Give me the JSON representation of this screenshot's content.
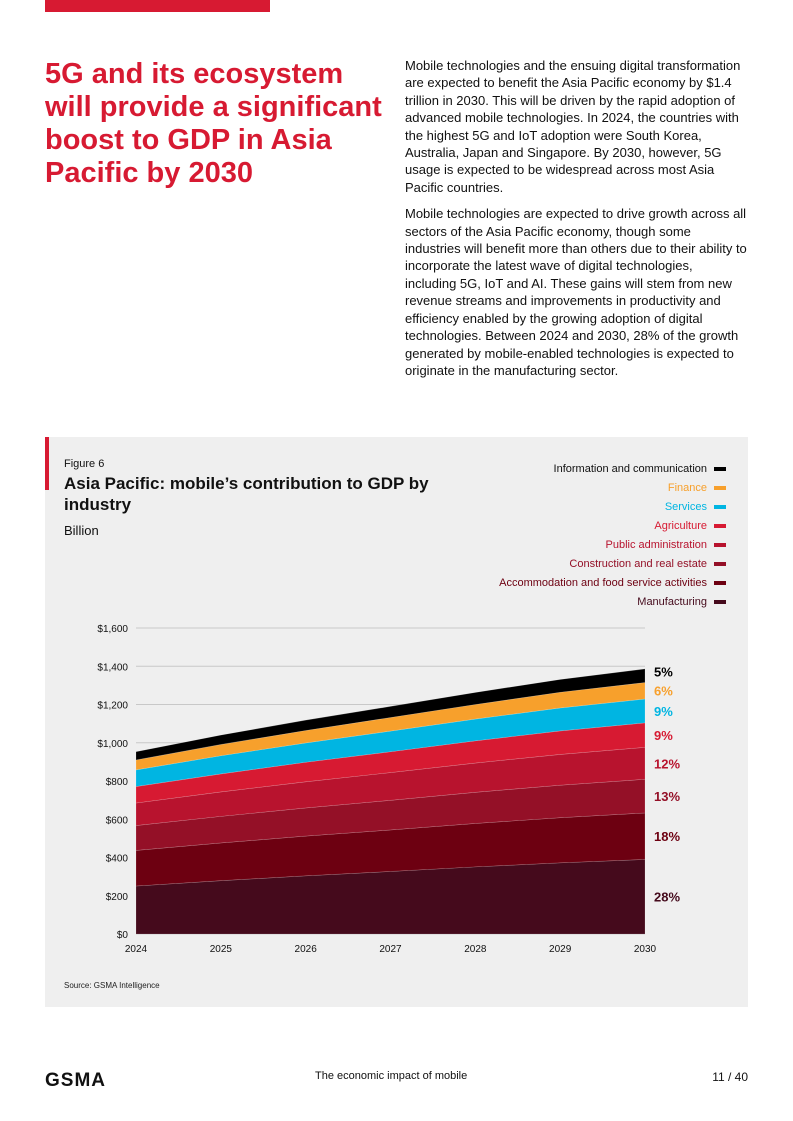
{
  "header": {
    "title": "5G and its ecosystem will provide a significant boost to GDP in Asia Pacific by 2030"
  },
  "body": {
    "paragraphs": [
      "Mobile technologies and the ensuing digital transformation are expected to benefit the Asia Pacific economy by $1.4 trillion in 2030. This will be driven by the rapid adoption of advanced mobile technologies. In 2024, the countries with the highest 5G and IoT adoption were South Korea, Australia, Japan and Singapore. By 2030, however, 5G usage is expected to be widespread across most Asia Pacific countries.",
      "Mobile technologies are expected to drive growth across all sectors of the Asia Pacific economy, though some industries will benefit more than others due to their ability to incorporate the latest wave of digital technologies, including 5G, IoT and AI. These gains will stem from new revenue streams and improvements in productivity and efficiency enabled by the growing adoption of digital technologies. Between 2024 and 2030, 28% of the growth generated by mobile-enabled technologies is expected to originate in the manufacturing sector."
    ]
  },
  "figure": {
    "number": "Figure 6",
    "title": "Asia Pacific: mobile’s contribution to GDP by industry",
    "unit": "Billion",
    "source": "Source: GSMA Intelligence"
  },
  "chart_data": {
    "type": "area",
    "stacked": true,
    "x": [
      "2024",
      "2025",
      "2026",
      "2027",
      "2028",
      "2029",
      "2030"
    ],
    "yticks": [
      "$0",
      "$200",
      "$400",
      "$600",
      "$800",
      "$1,000",
      "$1,200",
      "$1,400",
      "$1,600"
    ],
    "ylim": [
      0,
      1600
    ],
    "legend_position": "top-right",
    "series": [
      {
        "name": "Manufacturing",
        "color": "#450a1c",
        "share": "28%",
        "values": [
          251,
          279,
          304,
          327,
          351,
          372,
          390
        ]
      },
      {
        "name": "Accommodation and food service activities",
        "color": "#6d0011",
        "share": "18%",
        "values": [
          186,
          197,
          208,
          217,
          227,
          236,
          243
        ]
      },
      {
        "name": "Construction and real estate",
        "color": "#941027",
        "share": "13%",
        "values": [
          130,
          139,
          147,
          155,
          163,
          170,
          176
        ]
      },
      {
        "name": "Public administration",
        "color": "#b8132e",
        "share": "12%",
        "values": [
          118,
          128,
          137,
          145,
          153,
          161,
          167
        ]
      },
      {
        "name": "Agriculture",
        "color": "#d71a32",
        "share": "9%",
        "values": [
          86,
          94,
          102,
          109,
          116,
          123,
          128
        ]
      },
      {
        "name": "Services",
        "color": "#00b5e2",
        "share": "9%",
        "values": [
          87,
          95,
          101,
          108,
          114,
          120,
          125
        ]
      },
      {
        "name": "Finance",
        "color": "#f7a02c",
        "share": "6%",
        "values": [
          52,
          59,
          65,
          71,
          76,
          82,
          86
        ]
      },
      {
        "name": "Information and communication",
        "color": "#000000",
        "share": "5%",
        "values": [
          43,
          49,
          54,
          58,
          63,
          67,
          71
        ]
      }
    ]
  },
  "footer": {
    "logo": "GSMA",
    "center": "The economic impact of mobile",
    "page": "11 / 40"
  }
}
